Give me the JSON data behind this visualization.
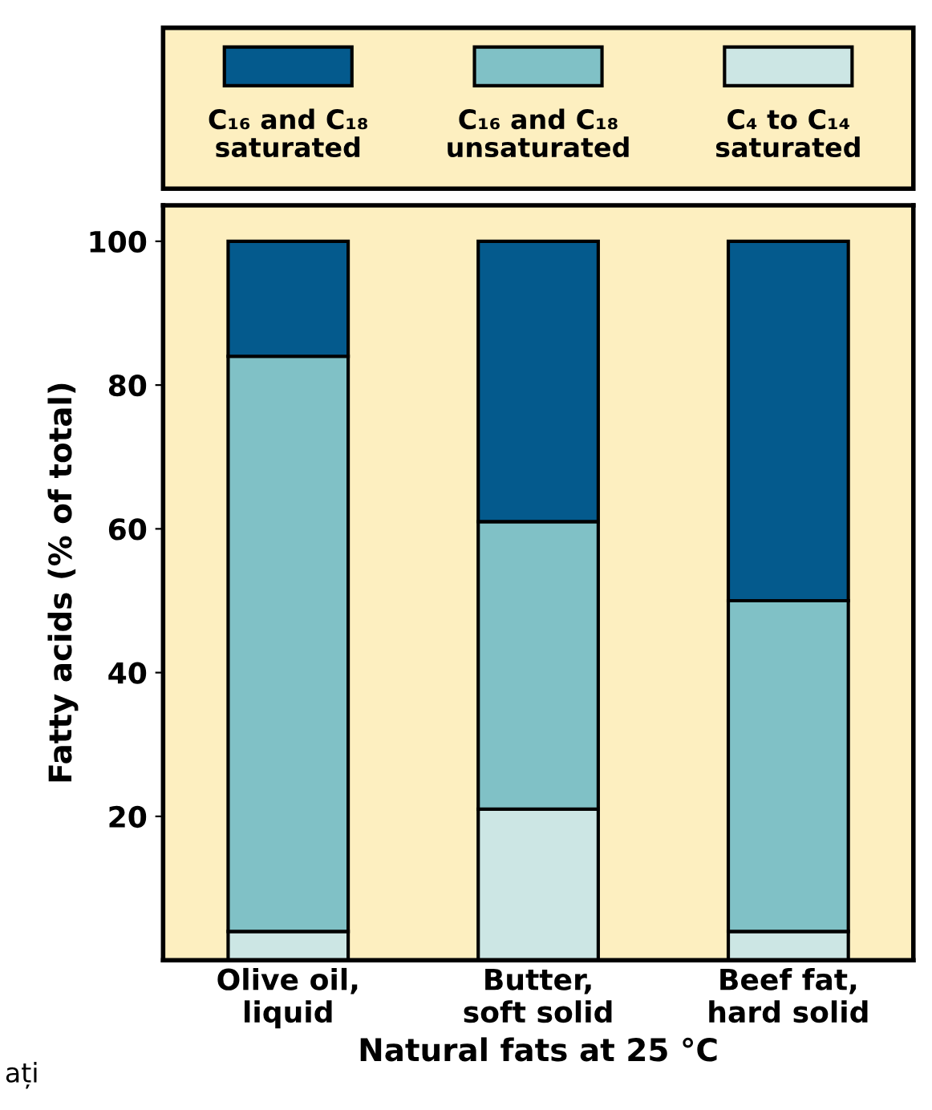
{
  "chart_data": {
    "type": "bar",
    "stacked": true,
    "xlabel": "Natural fats at 25 °C",
    "ylabel": "Fatty acids (% of total)",
    "categories": [
      "Olive oil, liquid",
      "Butter, soft solid",
      "Beef fat, hard solid"
    ],
    "series": [
      {
        "name": "C₄ to C₁₄ saturated",
        "color": "#cce6e4",
        "values": [
          4,
          21,
          4
        ]
      },
      {
        "name": "C₁₆ and C₁₈ unsaturated",
        "color": "#80c1c6",
        "values": [
          80,
          40,
          46
        ]
      },
      {
        "name": "C₁₆ and C₁₈ saturated",
        "color": "#045a8d",
        "values": [
          16,
          39,
          50
        ]
      }
    ],
    "ylim": [
      0,
      105
    ],
    "yticks": [
      20,
      40,
      60,
      80,
      100
    ],
    "legend": "top",
    "grid": false,
    "annotations": [
      "ați"
    ]
  }
}
